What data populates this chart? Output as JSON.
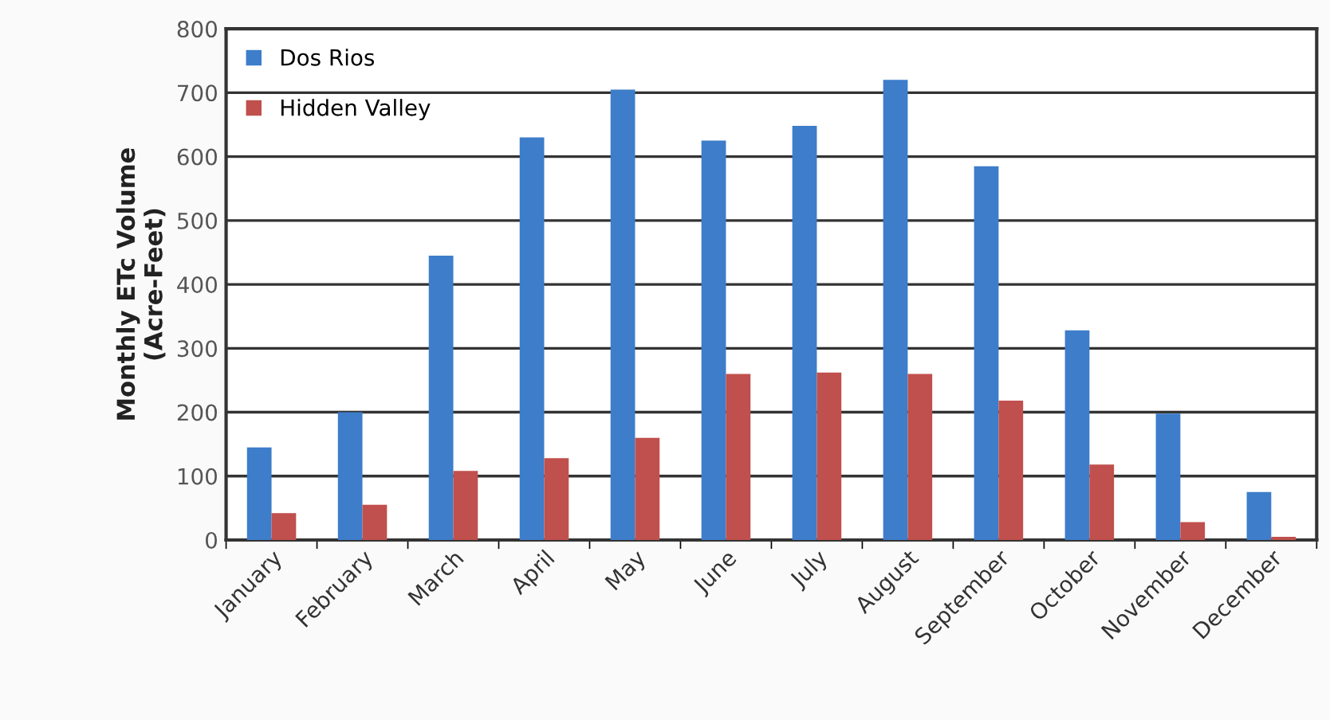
{
  "chart_data": {
    "type": "bar",
    "ylabel": "Monthly ETc Volume\n(Acre-Feet)",
    "categories": [
      "January",
      "February",
      "March",
      "April",
      "May",
      "June",
      "July",
      "August",
      "September",
      "October",
      "November",
      "December"
    ],
    "series": [
      {
        "name": "Dos Rios",
        "color": "#3d7dca",
        "values": [
          145,
          200,
          445,
          630,
          705,
          625,
          648,
          720,
          585,
          328,
          198,
          75
        ]
      },
      {
        "name": "Hidden Valley",
        "color": "#c0504d",
        "values": [
          42,
          55,
          108,
          128,
          160,
          260,
          262,
          260,
          218,
          118,
          28,
          5
        ]
      }
    ],
    "ylim": [
      0,
      800
    ],
    "yticks": [
      0,
      100,
      200,
      300,
      400,
      500,
      600,
      700,
      800
    ],
    "grid": "y",
    "legend": "top left"
  }
}
